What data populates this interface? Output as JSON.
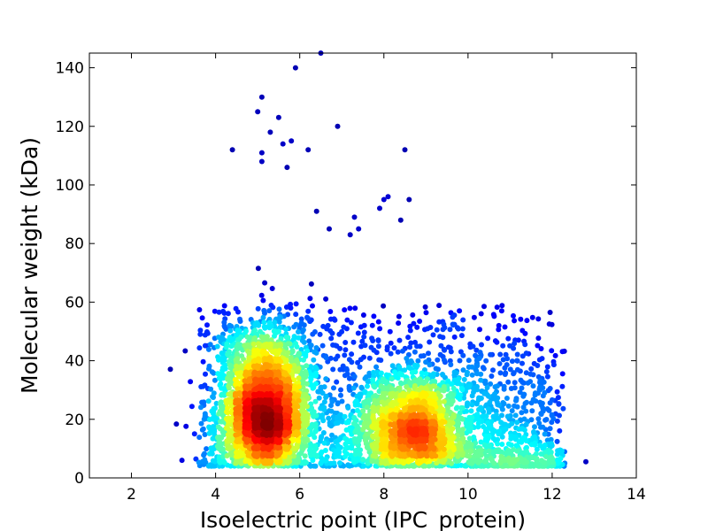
{
  "chart_data": {
    "type": "scatter",
    "subtype": "density-colored scatter",
    "xlabel": "Isoelectric point (IPC_protein)",
    "ylabel": "Molecular weight (kDa)",
    "xlim": [
      1,
      14
    ],
    "ylim": [
      0,
      145
    ],
    "xticks": [
      2,
      4,
      6,
      8,
      10,
      12,
      14
    ],
    "yticks": [
      0,
      20,
      40,
      60,
      80,
      100,
      120,
      140
    ],
    "grid": false,
    "legend": "none",
    "colormap": "jet (blue = low point density, red = high point density)",
    "density_peaks": [
      {
        "x": 5.2,
        "y": 15
      },
      {
        "x": 8.7,
        "y": 10
      }
    ],
    "notable_points": [
      {
        "x": 6.5,
        "y": 145
      },
      {
        "x": 5.9,
        "y": 140
      },
      {
        "x": 5.1,
        "y": 130
      },
      {
        "x": 5.0,
        "y": 125
      },
      {
        "x": 5.5,
        "y": 123
      },
      {
        "x": 6.9,
        "y": 120
      },
      {
        "x": 5.3,
        "y": 118
      },
      {
        "x": 5.8,
        "y": 115
      },
      {
        "x": 5.6,
        "y": 114
      },
      {
        "x": 4.4,
        "y": 112
      },
      {
        "x": 6.2,
        "y": 112
      },
      {
        "x": 8.5,
        "y": 112
      },
      {
        "x": 5.1,
        "y": 111
      },
      {
        "x": 5.1,
        "y": 108
      },
      {
        "x": 5.7,
        "y": 106
      },
      {
        "x": 8.1,
        "y": 96
      },
      {
        "x": 8.6,
        "y": 95
      },
      {
        "x": 8.0,
        "y": 95
      },
      {
        "x": 7.9,
        "y": 92
      },
      {
        "x": 6.4,
        "y": 91
      },
      {
        "x": 7.3,
        "y": 89
      },
      {
        "x": 8.4,
        "y": 88
      },
      {
        "x": 6.7,
        "y": 85
      },
      {
        "x": 7.4,
        "y": 85
      },
      {
        "x": 7.2,
        "y": 83
      },
      {
        "x": 12.8,
        "y": 5.5
      },
      {
        "x": 12.3,
        "y": 5
      },
      {
        "x": 3.2,
        "y": 6
      },
      {
        "x": 3.5,
        "y": 15
      },
      {
        "x": 11.2,
        "y": 47
      }
    ]
  }
}
